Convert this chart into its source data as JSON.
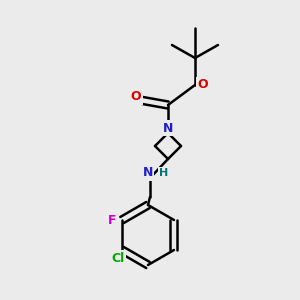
{
  "bg_color": "#ebebeb",
  "atom_colors": {
    "C": "#000000",
    "N": "#2020cc",
    "O": "#dd0000",
    "F": "#cc00cc",
    "Cl": "#00aa00",
    "H": "#007777"
  },
  "bond_color": "#000000",
  "bond_width": 1.8
}
